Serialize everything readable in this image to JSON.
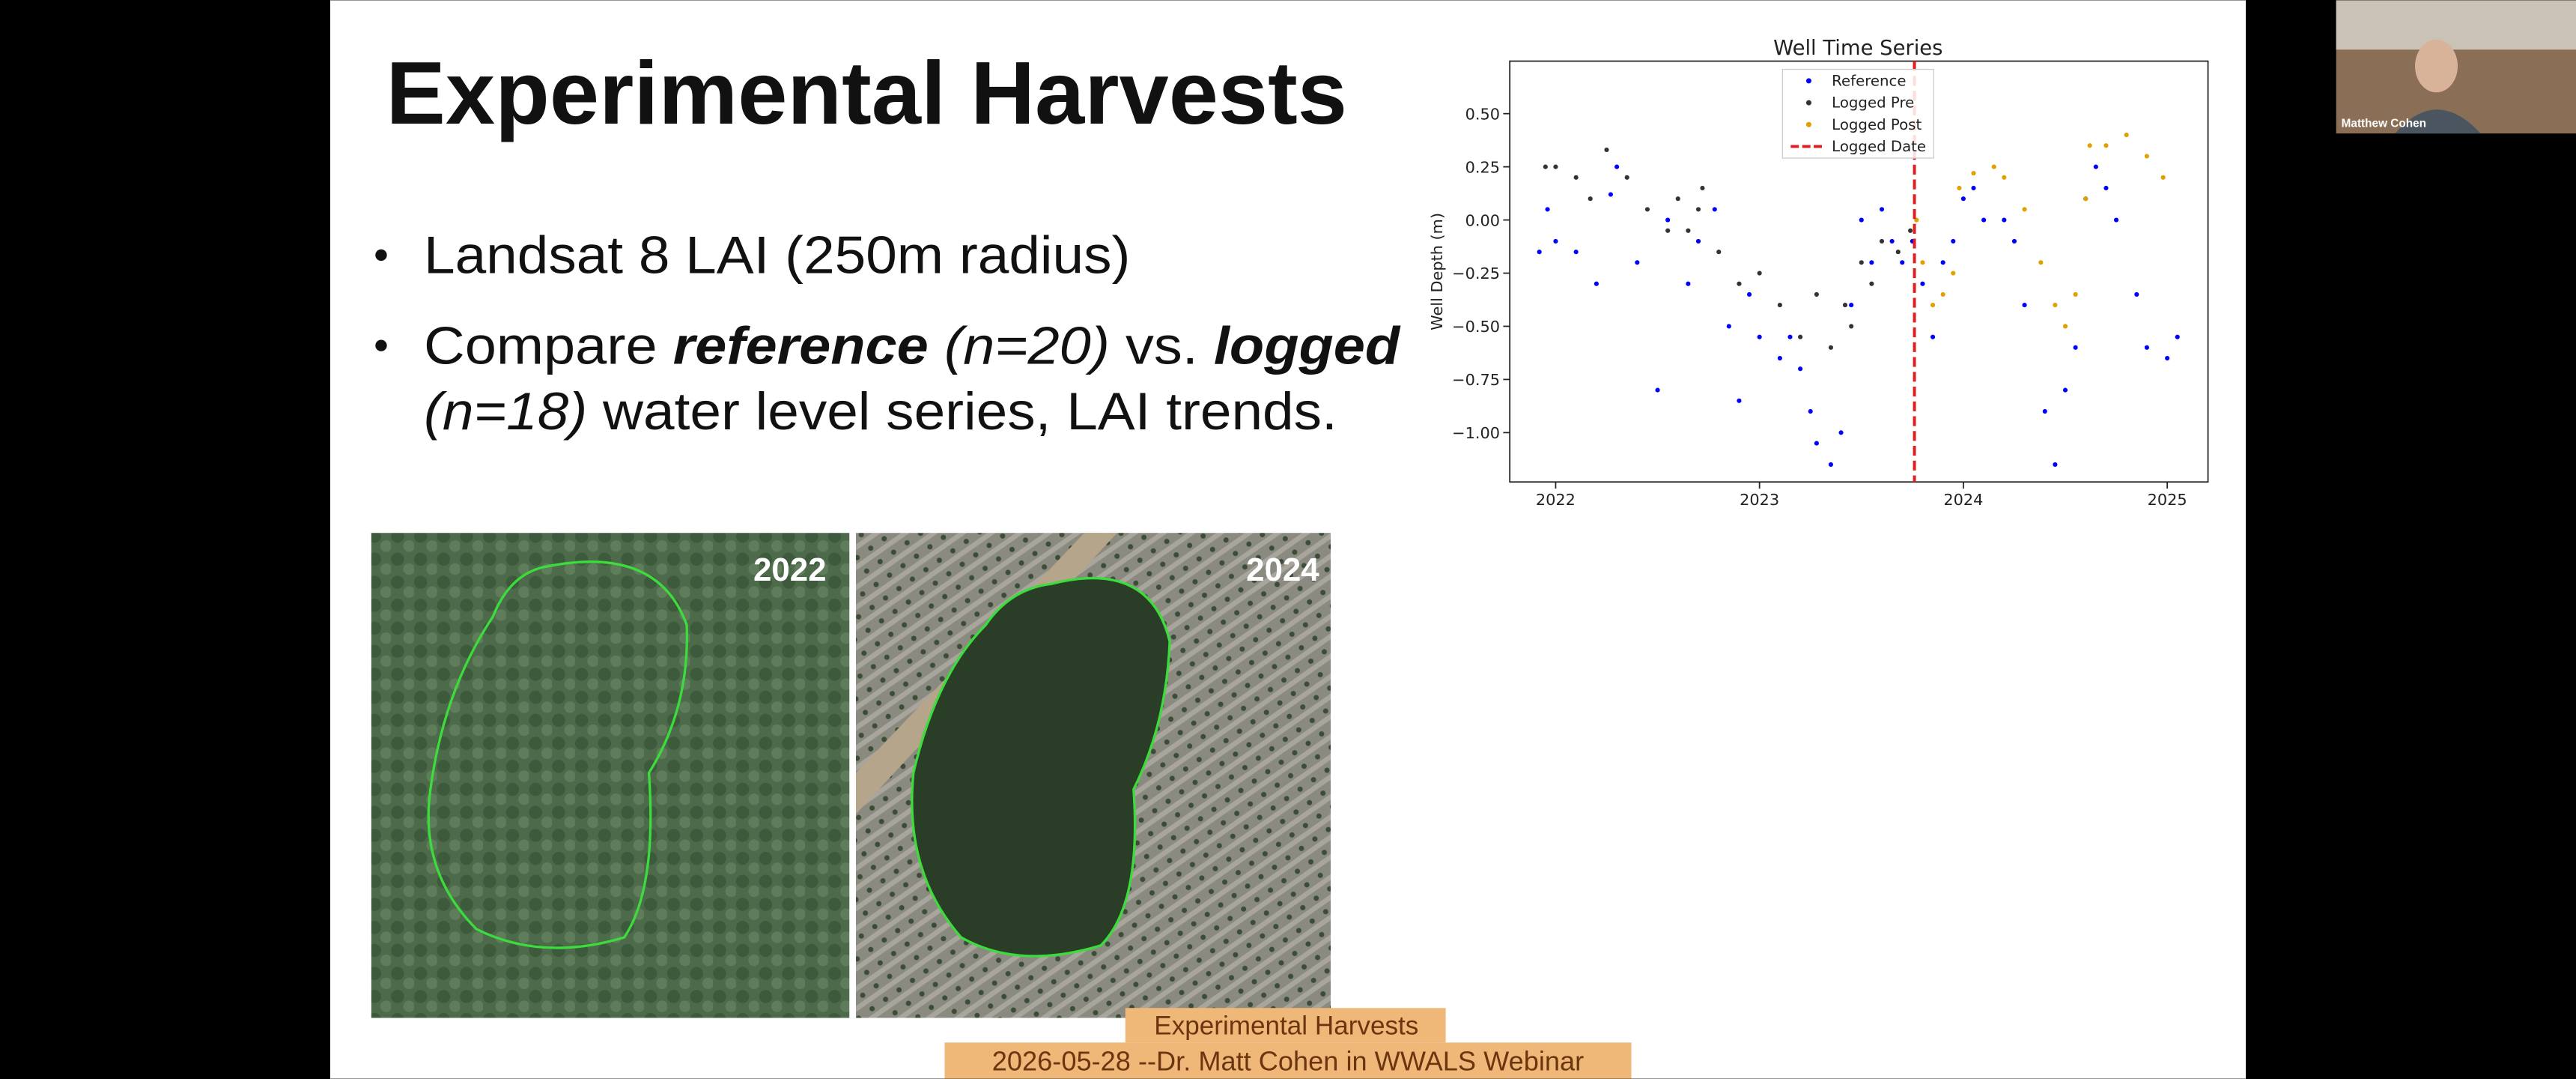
{
  "slide": {
    "title": "Experimental Harvests",
    "bullet1": "Landsat 8 LAI (250m radius)",
    "bullet2": {
      "a": "Compare ",
      "b": "reference",
      "c": " (n=20)",
      "d": " vs. ",
      "e": "logged",
      "f": "(n=18)",
      "g": " water level series, LAI trends."
    },
    "image_left_label": "2022",
    "image_right_label": "2024"
  },
  "chart": {
    "type": "scatter",
    "title": "Well Time Series",
    "ylabel": "Well Depth (m)",
    "xlim": [
      2021.775,
      2025.2
    ],
    "ylim": [
      -1.232,
      0.747
    ],
    "xticks": [
      2022,
      2023,
      2024,
      2025
    ],
    "yticks": [
      {
        "value": 0.5,
        "label": "0.50"
      },
      0.25,
      {
        "value": 0,
        "label": "0.00"
      },
      {
        "value": -0.25,
        "label": "−0.25"
      },
      {
        "value": -0.5,
        "label": "−0.50"
      },
      {
        "value": -0.75,
        "label": "−0.75"
      },
      {
        "value": -1,
        "label": "−1.00"
      }
    ],
    "series": [
      {
        "name": "Reference",
        "color": "#0000ff",
        "x": [
          2021.92,
          2021.96,
          2022.0,
          2022.1,
          2022.2,
          2022.27,
          2022.3,
          2022.4,
          2022.5,
          2022.55,
          2022.65,
          2022.7,
          2022.78,
          2022.85,
          2022.9,
          2022.95,
          2023.0,
          2023.1,
          2023.15,
          2023.2,
          2023.25,
          2023.28,
          2023.35,
          2023.4,
          2023.45,
          2023.5,
          2023.55,
          2023.6,
          2023.65,
          2023.7,
          2023.75,
          2023.8,
          2023.85,
          2023.9,
          2023.95,
          2024.0,
          2024.05,
          2024.1,
          2024.2,
          2024.25,
          2024.3,
          2024.4,
          2024.45,
          2024.5,
          2024.55,
          2024.6,
          2024.65,
          2024.7,
          2024.75,
          2024.85,
          2024.9,
          2025.0,
          2025.05
        ],
        "values": [
          -0.15,
          0.05,
          -0.1,
          -0.15,
          -0.3,
          0.12,
          0.25,
          -0.2,
          -0.8,
          0.0,
          -0.3,
          -0.1,
          0.05,
          -0.5,
          -0.85,
          -0.35,
          -0.55,
          -0.65,
          -0.55,
          -0.7,
          -0.9,
          -1.05,
          -1.15,
          -1.0,
          -0.4,
          0.0,
          -0.2,
          0.05,
          -0.1,
          -0.2,
          -0.1,
          -0.3,
          -0.55,
          -0.2,
          -0.1,
          0.1,
          0.15,
          0.0,
          0.0,
          -0.1,
          -0.4,
          -0.9,
          -1.15,
          -0.8,
          -0.6,
          0.1,
          0.25,
          0.15,
          0.0,
          -0.35,
          -0.6,
          -0.65,
          -0.55
        ]
      },
      {
        "name": "Logged Pre",
        "color": "#333333",
        "x": [
          2021.95,
          2022.0,
          2022.1,
          2022.17,
          2022.25,
          2022.35,
          2022.45,
          2022.55,
          2022.6,
          2022.65,
          2022.7,
          2022.72,
          2022.8,
          2022.9,
          2023.0,
          2023.1,
          2023.2,
          2023.28,
          2023.35,
          2023.42,
          2023.45,
          2023.5,
          2023.55,
          2023.6,
          2023.68,
          2023.74
        ],
        "values": [
          0.25,
          0.25,
          0.2,
          0.1,
          0.33,
          0.2,
          0.05,
          -0.05,
          0.1,
          -0.05,
          0.05,
          0.15,
          -0.15,
          -0.3,
          -0.25,
          -0.4,
          -0.55,
          -0.35,
          -0.6,
          -0.4,
          -0.5,
          -0.2,
          -0.3,
          -0.1,
          -0.15,
          -0.05
        ]
      },
      {
        "name": "Logged Post",
        "color": "#e0a000",
        "x": [
          2023.77,
          2023.8,
          2023.85,
          2023.9,
          2023.95,
          2023.98,
          2024.05,
          2024.15,
          2024.2,
          2024.3,
          2024.38,
          2024.45,
          2024.5,
          2024.55,
          2024.6,
          2024.62,
          2024.7,
          2024.8,
          2024.9,
          2024.98
        ],
        "values": [
          0.0,
          -0.2,
          -0.4,
          -0.35,
          -0.25,
          0.15,
          0.22,
          0.25,
          0.2,
          0.05,
          -0.2,
          -0.4,
          -0.5,
          -0.35,
          0.1,
          0.35,
          0.35,
          0.4,
          0.3,
          0.2
        ]
      }
    ],
    "vline": {
      "name": "Logged Date",
      "x": 2023.76,
      "color": "#e02020"
    }
  },
  "caption": {
    "line1": "Experimental Harvests",
    "line2": "2026-05-28 --Dr. Matt Cohen in WWALS Webinar"
  },
  "participant": {
    "name": "Matthew Cohen"
  }
}
